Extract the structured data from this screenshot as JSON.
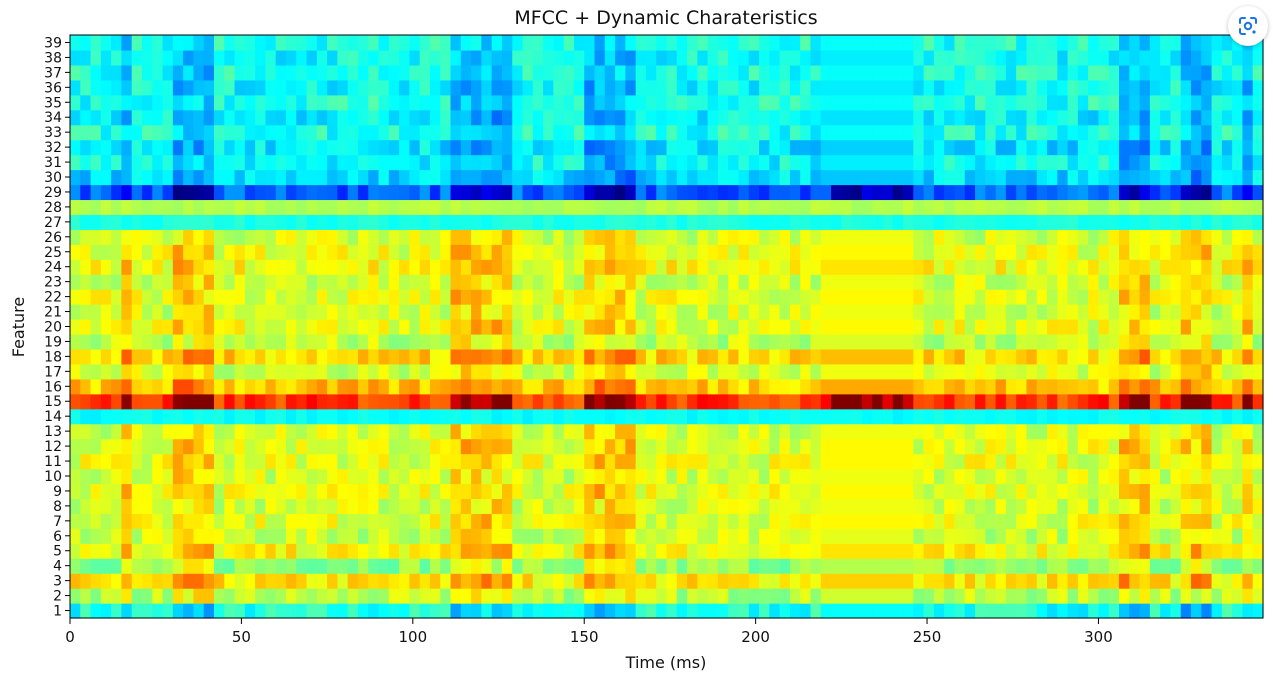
{
  "chart_data": {
    "type": "heatmap",
    "title": "MFCC + Dynamic Charateristics",
    "xlabel": "Time (ms)",
    "ylabel": "Feature",
    "xlim": [
      0,
      348
    ],
    "ylim": [
      1,
      39
    ],
    "x_ticks": [
      0,
      50,
      100,
      150,
      200,
      250,
      300
    ],
    "y_ticks": [
      1,
      2,
      3,
      4,
      5,
      6,
      7,
      8,
      9,
      10,
      11,
      12,
      13,
      14,
      15,
      16,
      17,
      18,
      19,
      20,
      21,
      22,
      23,
      24,
      25,
      26,
      27,
      28,
      29,
      30,
      31,
      32,
      33,
      34,
      35,
      36,
      37,
      38,
      39
    ],
    "colormap": "jet",
    "value_range": [
      0,
      1
    ],
    "n_frames": 348,
    "rows": {
      "1": 0.4,
      "2": 0.55,
      "3": 0.64,
      "4": 0.52,
      "5": 0.62,
      "6": 0.57,
      "7": 0.6,
      "8": 0.58,
      "9": 0.6,
      "10": 0.58,
      "11": 0.6,
      "12": 0.6,
      "13": 0.58,
      "14": 0.38,
      "15": 0.82,
      "16": 0.68,
      "17": 0.58,
      "18": 0.66,
      "19": 0.56,
      "20": 0.6,
      "21": 0.58,
      "22": 0.6,
      "23": 0.58,
      "24": 0.62,
      "25": 0.6,
      "26": 0.58,
      "27": 0.4,
      "28": 0.55,
      "29": 0.22,
      "30": 0.34,
      "31": 0.38,
      "32": 0.35,
      "33": 0.4,
      "34": 0.37,
      "35": 0.4,
      "36": 0.38,
      "37": 0.4,
      "38": 0.38,
      "39": 0.4
    },
    "emphasis_segments": [
      [
        16,
        18
      ],
      [
        30,
        42
      ],
      [
        112,
        128
      ],
      [
        150,
        165
      ],
      [
        222,
        246
      ],
      [
        306,
        314
      ],
      [
        324,
        332
      ],
      [
        342,
        346
      ]
    ],
    "flat_segment": [
      220,
      247
    ]
  },
  "ui": {
    "lens_button_icon": "google-lens-icon"
  }
}
